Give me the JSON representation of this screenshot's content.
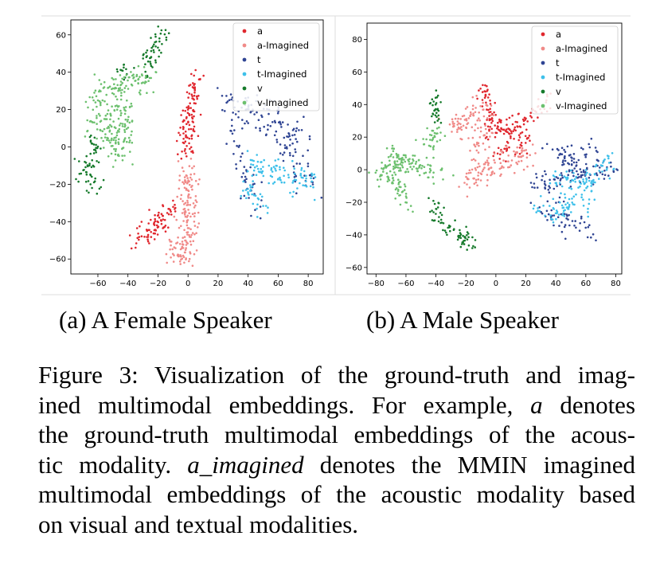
{
  "colors": {
    "a": "#e0272e",
    "a-Imagined": "#f08a88",
    "t": "#2f4493",
    "t-Imagined": "#3ec0ea",
    "v": "#167a2b",
    "v-Imagined": "#6cc06e"
  },
  "subcaptions": {
    "a": "(a) A Female Speaker",
    "b": "(b) A Male Speaker"
  },
  "caption": {
    "label": "Figure 3:",
    "lines": [
      "Visualization of the ground-truth and imag-",
      "ined multimodal embeddings. For example,",
      "denotes",
      "the ground-truth multimodal embeddings of the acous-",
      "tic modality.",
      "denotes the MMIN imagined",
      "multimodal embeddings of the acoustic modality based",
      "on visual and textual modalities."
    ],
    "math_a": "a",
    "math_a_imagined": "a_imagined"
  },
  "chart_data": [
    {
      "type": "scatter",
      "panel": "(a) A Female Speaker",
      "xlim": [
        -78,
        90
      ],
      "ylim": [
        -68,
        68
      ],
      "xticks": [
        -60,
        -40,
        -20,
        0,
        20,
        40,
        60,
        80
      ],
      "yticks": [
        -60,
        -40,
        -20,
        0,
        20,
        40,
        60
      ],
      "grid": false,
      "legend": "top-right",
      "series": [
        {
          "name": "a",
          "clusters": [
            {
              "path": [
                [
                  4,
                  40
                ],
                [
                  3,
                  25
                ],
                [
                  0,
                  10
                ],
                [
                  -2,
                  -5
                ]
              ],
              "spread": 3,
              "n": 110
            },
            {
              "path": [
                [
                  -34,
                  -47
                ],
                [
                  -28,
                  -47
                ],
                [
                  -22,
                  -43
                ],
                [
                  -16,
                  -40
                ]
              ],
              "spread": 3,
              "n": 60
            },
            {
              "path": [
                [
                  -16,
                  -40
                ],
                [
                  -12,
                  -35
                ],
                [
                  -8,
                  -33
                ]
              ],
              "spread": 2.5,
              "n": 20
            }
          ]
        },
        {
          "name": "a-Imagined",
          "clusters": [
            {
              "path": [
                [
                  -1,
                  -10
                ],
                [
                  0,
                  -25
                ],
                [
                  1,
                  -40
                ],
                [
                  -1,
                  -52
                ],
                [
                  -5,
                  -58
                ]
              ],
              "spread": 3,
              "n": 140
            },
            {
              "path": [
                [
                  -12,
                  -52
                ],
                [
                  -6,
                  -58
                ],
                [
                  0,
                  -60
                ]
              ],
              "spread": 2.5,
              "n": 30
            }
          ]
        },
        {
          "name": "t",
          "clusters": [
            {
              "path": [
                [
                  28,
                  26
                ],
                [
                  34,
                  12
                ],
                [
                  38,
                  20
                ],
                [
                  52,
                  18
                ],
                [
                  60,
                  12
                ],
                [
                  72,
                  4
                ]
              ],
              "spread": 5,
              "n": 110
            },
            {
              "path": [
                [
                  32,
                  5
                ],
                [
                  36,
                  -12
                ],
                [
                  42,
                  -25
                ],
                [
                  46,
                  -32
                ]
              ],
              "spread": 4,
              "n": 40
            },
            {
              "path": [
                [
                  60,
                  5
                ],
                [
                  72,
                  -5
                ],
                [
                  78,
                  -15
                ],
                [
                  82,
                  -20
                ]
              ],
              "spread": 4,
              "n": 40
            }
          ]
        },
        {
          "name": "t-Imagined",
          "clusters": [
            {
              "path": [
                [
                  38,
                  -10
                ],
                [
                  50,
                  -12
                ],
                [
                  62,
                  -14
                ],
                [
                  74,
                  -18
                ],
                [
                  82,
                  -18
                ]
              ],
              "spread": 3.5,
              "n": 90
            },
            {
              "path": [
                [
                  38,
                  -20
                ],
                [
                  46,
                  -27
                ],
                [
                  48,
                  -32
                ]
              ],
              "spread": 3,
              "n": 30
            }
          ]
        },
        {
          "name": "v",
          "clusters": [
            {
              "path": [
                [
                  -30,
                  40
                ],
                [
                  -24,
                  50
                ],
                [
                  -18,
                  58
                ],
                [
                  -17,
                  62
                ]
              ],
              "spread": 3,
              "n": 50
            },
            {
              "path": [
                [
                  -62,
                  5
                ],
                [
                  -66,
                  -10
                ],
                [
                  -72,
                  -15
                ],
                [
                  -60,
                  -20
                ],
                [
                  -58,
                  -22
                ]
              ],
              "spread": 3,
              "n": 60
            },
            {
              "path": [
                [
                  -45,
                  40
                ],
                [
                  -42,
                  42
                ]
              ],
              "spread": 2,
              "n": 12
            }
          ]
        },
        {
          "name": "v-Imagined",
          "clusters": [
            {
              "path": [
                [
                  -58,
                  32
                ],
                [
                  -52,
                  28
                ],
                [
                  -42,
                  35
                ],
                [
                  -30,
                  37
                ],
                [
                  -24,
                  35
                ]
              ],
              "spread": 4,
              "n": 90
            },
            {
              "path": [
                [
                  -60,
                  25
                ],
                [
                  -56,
                  12
                ],
                [
                  -50,
                  5
                ],
                [
                  -44,
                  0
                ]
              ],
              "spread": 5,
              "n": 120
            },
            {
              "path": [
                [
                  -46,
                  22
                ],
                [
                  -42,
                  15
                ],
                [
                  -40,
                  5
                ]
              ],
              "spread": 3,
              "n": 40
            }
          ]
        }
      ]
    },
    {
      "type": "scatter",
      "panel": "(b) A Male Speaker",
      "xlim": [
        -86,
        84
      ],
      "ylim": [
        -64,
        90
      ],
      "xticks": [
        -80,
        -60,
        -40,
        -20,
        0,
        20,
        40,
        60,
        80
      ],
      "yticks": [
        -60,
        -40,
        -20,
        0,
        20,
        40,
        60,
        80
      ],
      "grid": false,
      "legend": "top-right",
      "series": [
        {
          "name": "a",
          "clusters": [
            {
              "path": [
                [
                  -8,
                  50
                ],
                [
                  -6,
                  40
                ],
                [
                  -4,
                  30
                ],
                [
                  0,
                  25
                ]
              ],
              "spread": 2.5,
              "n": 50
            },
            {
              "path": [
                [
                  -5,
                  20
                ],
                [
                  10,
                  25
                ],
                [
                  22,
                  32
                ],
                [
                  32,
                  38
                ],
                [
                  36,
                  44
                ]
              ],
              "spread": 3,
              "n": 80
            },
            {
              "path": [
                [
                  0,
                  10
                ],
                [
                  10,
                  15
                ],
                [
                  20,
                  18
                ]
              ],
              "spread": 3,
              "n": 40
            }
          ]
        },
        {
          "name": "a-Imagined",
          "clusters": [
            {
              "path": [
                [
                  -28,
                  25
                ],
                [
                  -20,
                  28
                ],
                [
                  -14,
                  35
                ],
                [
                  -8,
                  40
                ]
              ],
              "spread": 4,
              "n": 70
            },
            {
              "path": [
                [
                  -20,
                  -8
                ],
                [
                  -10,
                  0
                ],
                [
                  0,
                  3
                ],
                [
                  8,
                  5
                ],
                [
                  16,
                  8
                ],
                [
                  22,
                  12
                ]
              ],
              "spread": 4,
              "n": 110
            },
            {
              "path": [
                [
                  -14,
                  12
                ],
                [
                  -10,
                  20
                ],
                [
                  -6,
                  25
                ]
              ],
              "spread": 3,
              "n": 30
            }
          ]
        },
        {
          "name": "t",
          "clusters": [
            {
              "path": [
                [
                  38,
                  14
                ],
                [
                  48,
                  7
                ],
                [
                  56,
                  3
                ],
                [
                  64,
                  14
                ],
                [
                  66,
                  20
                ]
              ],
              "spread": 3.5,
              "n": 60
            },
            {
              "path": [
                [
                  24,
                  -6
                ],
                [
                  30,
                  -10
                ],
                [
                  40,
                  -8
                ],
                [
                  55,
                  -5
                ],
                [
                  70,
                  0
                ],
                [
                  76,
                  5
                ]
              ],
              "spread": 4,
              "n": 80
            },
            {
              "path": [
                [
                  30,
                  -25
                ],
                [
                  42,
                  -30
                ],
                [
                  55,
                  -33
                ],
                [
                  64,
                  -38
                ]
              ],
              "spread": 3.5,
              "n": 50
            }
          ]
        },
        {
          "name": "t-Imagined",
          "clusters": [
            {
              "path": [
                [
                  40,
                  -4
                ],
                [
                  50,
                  -6
                ],
                [
                  60,
                  -10
                ],
                [
                  70,
                  0
                ],
                [
                  76,
                  6
                ]
              ],
              "spread": 3.5,
              "n": 80
            },
            {
              "path": [
                [
                  30,
                  -26
                ],
                [
                  40,
                  -27
                ],
                [
                  50,
                  -20
                ],
                [
                  58,
                  -18
                ],
                [
                  64,
                  -22
                ]
              ],
              "spread": 3.5,
              "n": 60
            }
          ]
        },
        {
          "name": "v",
          "clusters": [
            {
              "path": [
                [
                  -40,
                  45
                ],
                [
                  -42,
                  38
                ],
                [
                  -40,
                  32
                ]
              ],
              "spread": 2,
              "n": 30
            },
            {
              "path": [
                [
                  -42,
                  -22
                ],
                [
                  -36,
                  -30
                ],
                [
                  -30,
                  -36
                ],
                [
                  -24,
                  -40
                ],
                [
                  -20,
                  -45
                ],
                [
                  -16,
                  -48
                ]
              ],
              "spread": 3,
              "n": 70
            }
          ]
        },
        {
          "name": "v-Imagined",
          "clusters": [
            {
              "path": [
                [
                  -82,
                  -6
                ],
                [
                  -74,
                  0
                ],
                [
                  -66,
                  3
                ],
                [
                  -56,
                  4
                ],
                [
                  -46,
                  0
                ],
                [
                  -38,
                  -2
                ]
              ],
              "spread": 3.5,
              "n": 100
            },
            {
              "path": [
                [
                  -70,
                  10
                ],
                [
                  -60,
                  6
                ]
              ],
              "spread": 3,
              "n": 30
            },
            {
              "path": [
                [
                  -70,
                  -5
                ],
                [
                  -64,
                  -12
                ],
                [
                  -60,
                  -18
                ],
                [
                  -58,
                  -24
                ]
              ],
              "spread": 2.5,
              "n": 40
            },
            {
              "path": [
                [
                  -48,
                  15
                ],
                [
                  -42,
                  20
                ],
                [
                  -36,
                  24
                ]
              ],
              "spread": 2.5,
              "n": 30
            }
          ]
        }
      ]
    }
  ]
}
